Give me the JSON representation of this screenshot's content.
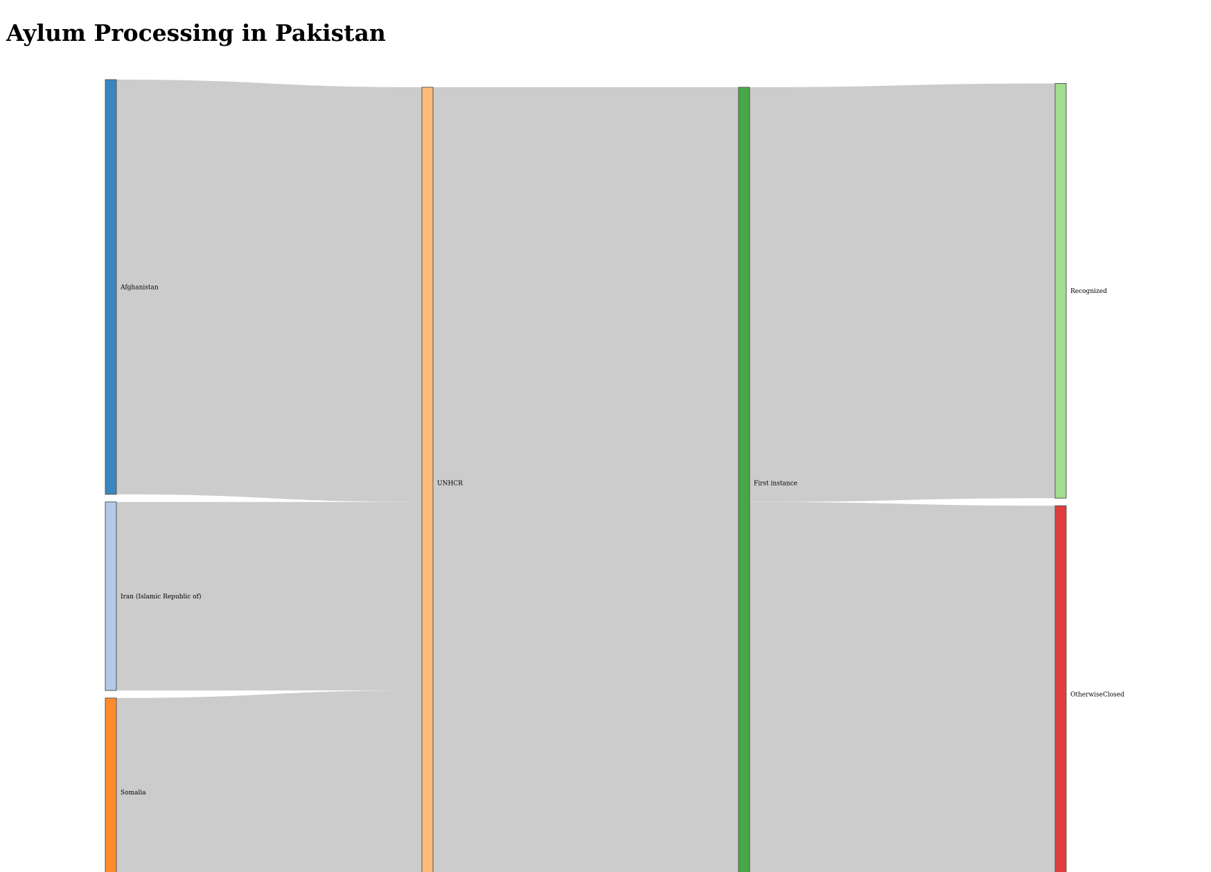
{
  "title": "Aylum Processing in Pakistan",
  "diagram": {
    "type": "sankey",
    "nodes": [
      {
        "id": "afghanistan",
        "label": "Afghanistan",
        "column": 0,
        "color": "#3a86be"
      },
      {
        "id": "iran",
        "label": "Iran (Islamic Republic of)",
        "column": 0,
        "color": "#b3c9e8"
      },
      {
        "id": "somalia",
        "label": "Somalia",
        "column": 0,
        "color": "#ff8c2a"
      },
      {
        "id": "unhcr",
        "label": "UNHCR",
        "column": 1,
        "color": "#ffbb78"
      },
      {
        "id": "first_instance",
        "label": "First instance",
        "column": 2,
        "color": "#45a845"
      },
      {
        "id": "recognized",
        "label": "Recognized",
        "column": 3,
        "color": "#a1de8f"
      },
      {
        "id": "otherwise_closed",
        "label": "OtherwiseClosed",
        "column": 3,
        "color": "#de3e3e"
      }
    ],
    "links": [
      {
        "source": "afghanistan",
        "target": "unhcr",
        "value": 55
      },
      {
        "source": "iran",
        "target": "unhcr",
        "value": 25
      },
      {
        "source": "somalia",
        "target": "unhcr",
        "value": 25
      },
      {
        "source": "unhcr",
        "target": "first_instance",
        "value": 105
      },
      {
        "source": "first_instance",
        "target": "recognized",
        "value": 55
      },
      {
        "source": "first_instance",
        "target": "otherwise_closed",
        "value": 50
      }
    ],
    "link_color": "#cccccc"
  }
}
